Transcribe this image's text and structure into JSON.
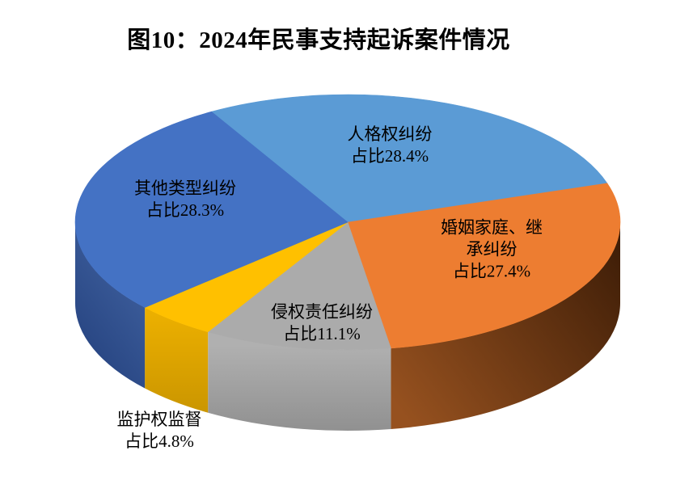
{
  "title": "图10：2024年民事支持起诉案件情况",
  "chart_data": {
    "type": "pie",
    "style": "3d-extruded",
    "title": "图10：2024年民事支持起诉案件情况",
    "legend_position": "none",
    "data_labels": "on-slice",
    "units": "percent",
    "start_angle_deg": -30,
    "direction": "clockwise",
    "slices": [
      {
        "name": "人格权纠纷",
        "value": 28.4,
        "label_lines": [
          "人格权纠纷",
          "占比28.4%"
        ],
        "color": "#5B9BD5",
        "side_colors": [
          "#3E6E9E",
          "#2F5579"
        ]
      },
      {
        "name": "婚姻家庭、继承纠纷",
        "value": 27.4,
        "label_lines": [
          "婚姻家庭、继",
          "承纠纷",
          "占比27.4%"
        ],
        "color": "#ED7D31",
        "side_colors": [
          "#96511F",
          "#3A1B06"
        ]
      },
      {
        "name": "侵权责任纠纷",
        "value": 11.1,
        "label_lines": [
          "侵权责任纠纷",
          "占比11.1%"
        ],
        "color": "#ABABAB",
        "side_colors": [
          "#B0B0B0",
          "#8D8D8D"
        ]
      },
      {
        "name": "监护权监督",
        "value": 4.8,
        "label_lines": [
          "监护权监督",
          "占比4.8%"
        ],
        "color": "#FFC000",
        "side_colors": [
          "#EBAF00",
          "#CC9700"
        ]
      },
      {
        "name": "其他类型纠纷",
        "value": 28.3,
        "label_lines": [
          "其他类型纠纷",
          "占比28.3%"
        ],
        "color": "#4472C4",
        "side_colors": [
          "#40619F",
          "#2A4885"
        ]
      }
    ]
  }
}
